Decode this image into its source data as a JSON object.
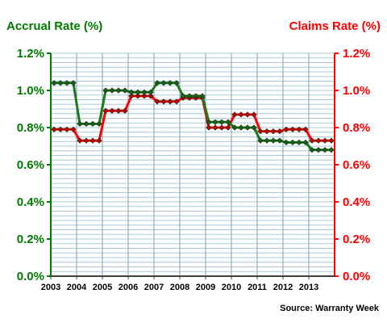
{
  "chart_data": {
    "type": "line",
    "title_left": "Accrual Rate (%)",
    "title_right": "Claims Rate (%)",
    "source": "Source: Warranty Week",
    "x_tick_labels": [
      "2003",
      "2004",
      "2005",
      "2006",
      "2007",
      "2008",
      "2009",
      "2010",
      "2011",
      "2012",
      "2013"
    ],
    "x_range": [
      2003,
      2014
    ],
    "y_left": {
      "ticks": [
        "0.0%",
        "0.2%",
        "0.4%",
        "0.6%",
        "0.8%",
        "1.0%",
        "1.2%"
      ],
      "range": [
        0,
        1.2
      ]
    },
    "y_right": {
      "ticks": [
        "0.0%",
        "0.2%",
        "0.4%",
        "0.6%",
        "0.8%",
        "1.0%",
        "1.2%"
      ],
      "range": [
        0,
        1.2
      ]
    },
    "grid": true,
    "colors": {
      "accrual": "#1a7a1a",
      "claims": "#ff0000",
      "grid": "#a9c9d9",
      "left_axis": "#007a00",
      "right_axis": "#ff0000",
      "accrual_marker": "#1e5e1e",
      "claims_marker": "#c80000"
    },
    "series": [
      {
        "axis": "left",
        "quarters": [
          1.04,
          1.04,
          1.04,
          1.04,
          0.82,
          0.82,
          0.82,
          0.82,
          1.0,
          1.0,
          1.0,
          1.0,
          0.99,
          0.99,
          0.99,
          0.99,
          1.04,
          1.04,
          1.04,
          1.04,
          0.97,
          0.97,
          0.97,
          0.97,
          0.83,
          0.83,
          0.83,
          0.83,
          0.8,
          0.8,
          0.8,
          0.8,
          0.73,
          0.73,
          0.73,
          0.73,
          0.72,
          0.72,
          0.72,
          0.72,
          0.68,
          0.68,
          0.68,
          0.68
        ]
      },
      {
        "axis": "right",
        "quarters": [
          0.79,
          0.79,
          0.79,
          0.79,
          0.73,
          0.73,
          0.73,
          0.73,
          0.89,
          0.89,
          0.89,
          0.89,
          0.97,
          0.97,
          0.97,
          0.97,
          0.94,
          0.94,
          0.94,
          0.94,
          0.96,
          0.96,
          0.96,
          0.96,
          0.8,
          0.8,
          0.8,
          0.8,
          0.87,
          0.87,
          0.87,
          0.87,
          0.78,
          0.78,
          0.78,
          0.78,
          0.79,
          0.79,
          0.79,
          0.79,
          0.73,
          0.73,
          0.73,
          0.73
        ]
      }
    ]
  }
}
